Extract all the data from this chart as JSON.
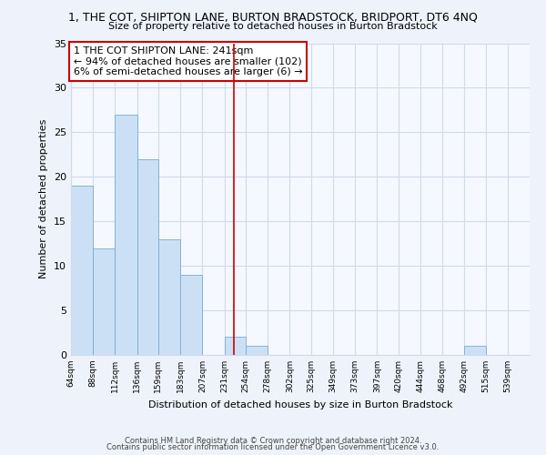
{
  "title": "1, THE COT, SHIPTON LANE, BURTON BRADSTOCK, BRIDPORT, DT6 4NQ",
  "subtitle": "Size of property relative to detached houses in Burton Bradstock",
  "xlabel": "Distribution of detached houses by size in Burton Bradstock",
  "ylabel": "Number of detached properties",
  "bar_color": "#cce0f5",
  "bar_edge_color": "#7aabce",
  "bin_labels": [
    "64sqm",
    "88sqm",
    "112sqm",
    "136sqm",
    "159sqm",
    "183sqm",
    "207sqm",
    "231sqm",
    "254sqm",
    "278sqm",
    "302sqm",
    "325sqm",
    "349sqm",
    "373sqm",
    "397sqm",
    "420sqm",
    "444sqm",
    "468sqm",
    "492sqm",
    "515sqm",
    "539sqm"
  ],
  "bin_edges": [
    64,
    88,
    112,
    136,
    159,
    183,
    207,
    231,
    254,
    278,
    302,
    325,
    349,
    373,
    397,
    420,
    444,
    468,
    492,
    515,
    539,
    563
  ],
  "counts": [
    19,
    12,
    27,
    22,
    13,
    9,
    0,
    2,
    1,
    0,
    0,
    0,
    0,
    0,
    0,
    0,
    0,
    0,
    1,
    0,
    0
  ],
  "property_value": 241,
  "vline_color": "#cc0000",
  "annotation_text_line1": "1 THE COT SHIPTON LANE: 241sqm",
  "annotation_text_line2": "← 94% of detached houses are smaller (102)",
  "annotation_text_line3": "6% of semi-detached houses are larger (6) →",
  "annotation_box_facecolor": "#ffffff",
  "annotation_box_edgecolor": "#cc0000",
  "ylim": [
    0,
    35
  ],
  "yticks": [
    0,
    5,
    10,
    15,
    20,
    25,
    30,
    35
  ],
  "footer1": "Contains HM Land Registry data © Crown copyright and database right 2024.",
  "footer2": "Contains public sector information licensed under the Open Government Licence v3.0.",
  "bg_color": "#eef2fa",
  "plot_bg_color": "#f5f8fe",
  "grid_color": "#d0daea"
}
